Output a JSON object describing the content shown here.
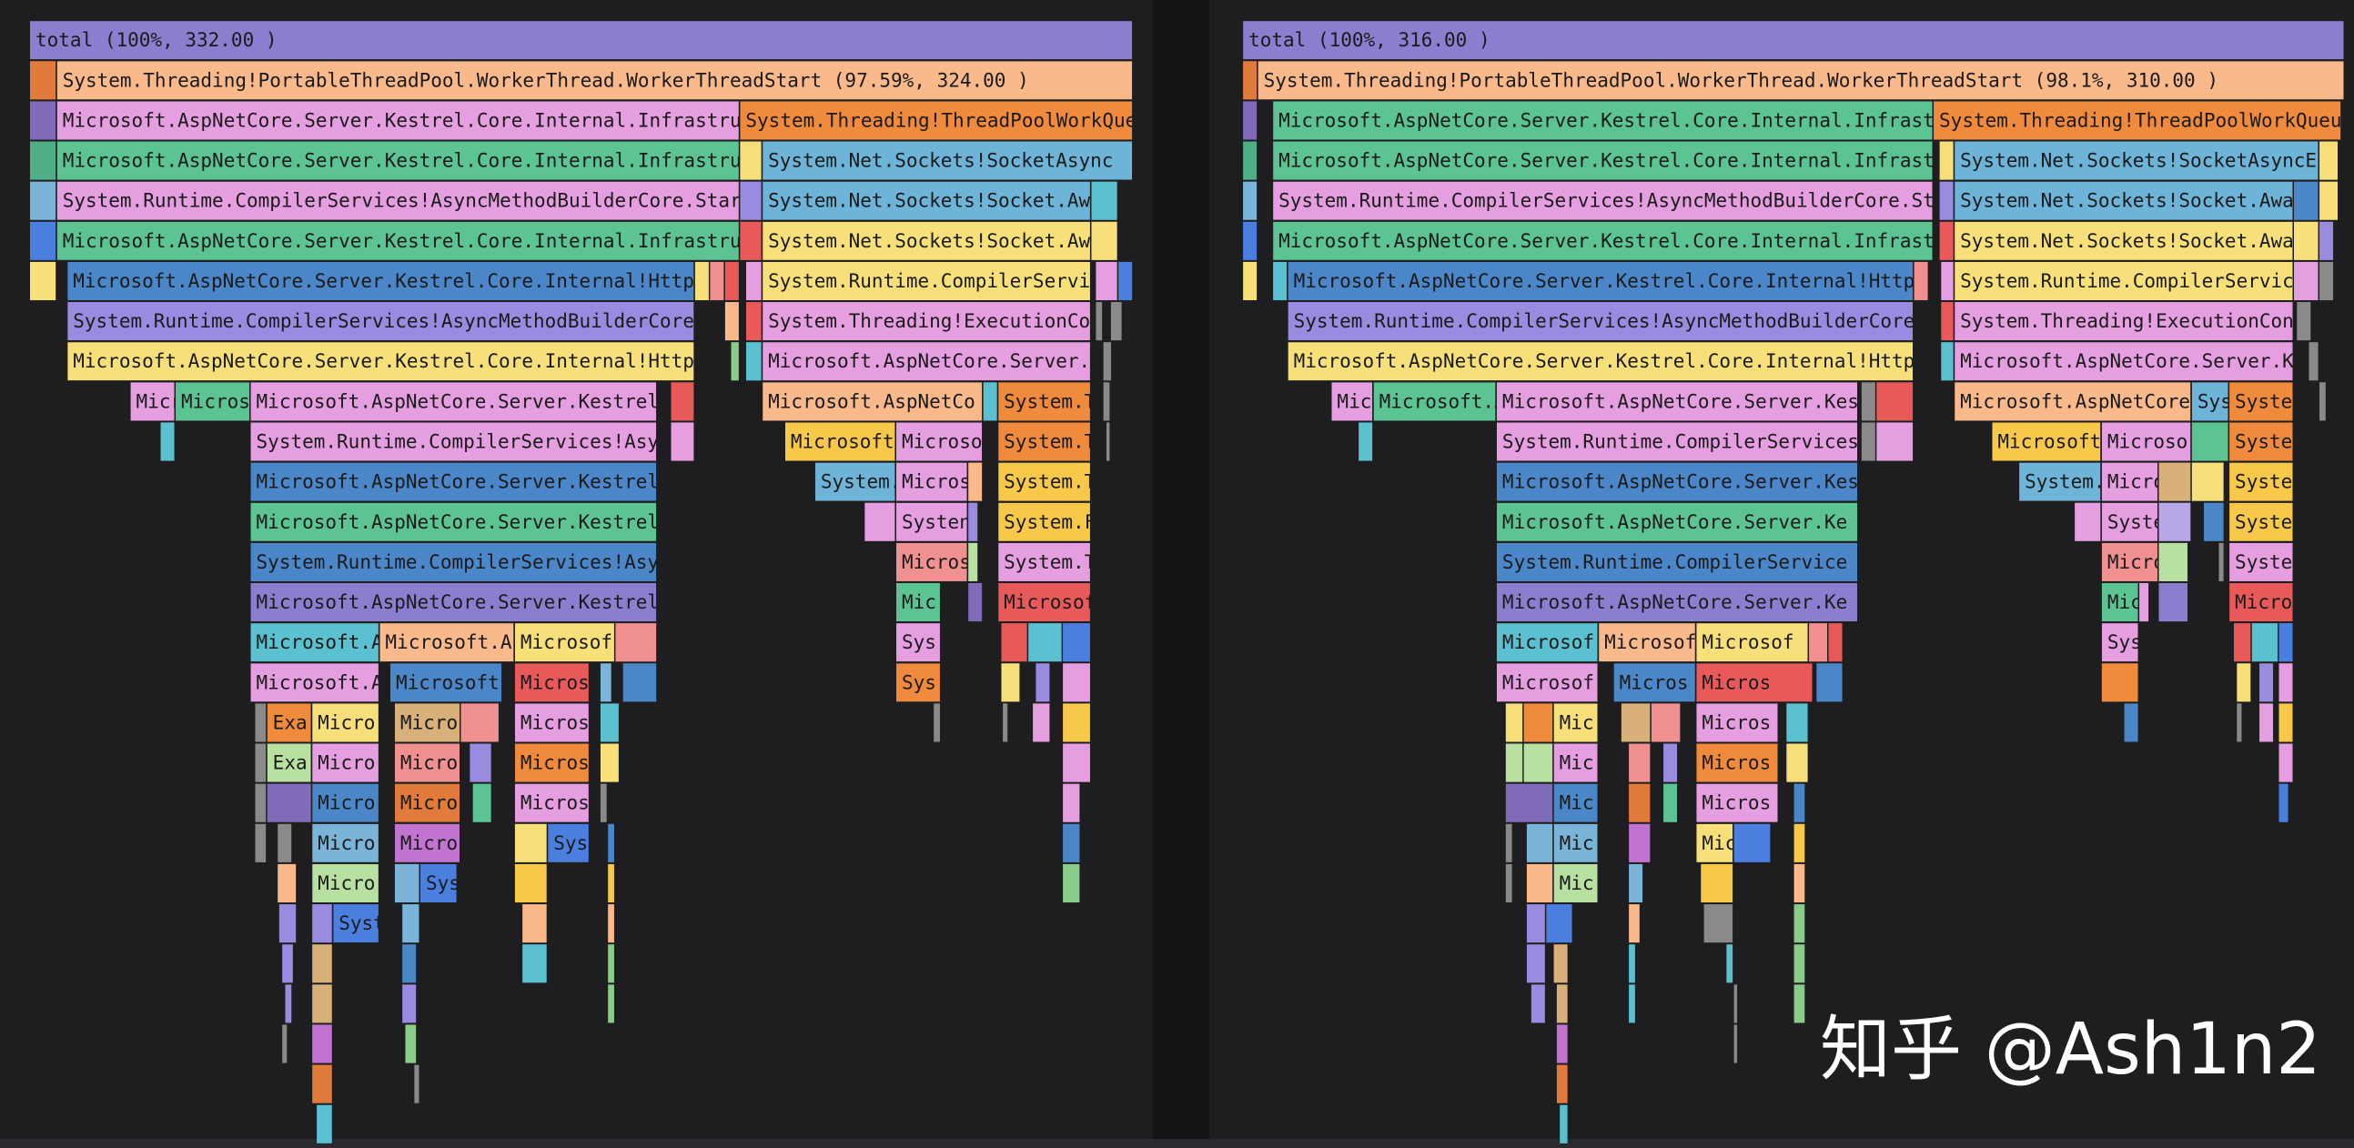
{
  "panels": [
    {
      "frames": [
        "total (100%, 332.00 )",
        "System.Threading!PortableThreadPool.WorkerThread.WorkerThreadStart (97.59%, 324.00 )",
        "Microsoft.AspNetCore.Server.Kestrel.Core.Internal.Infrastru",
        "System.Threading!ThreadPoolWorkQue",
        "Microsoft.AspNetCore.Server.Kestrel.Core.Internal.Infrastru",
        "System.Net.Sockets!SocketAsync",
        "System.Runtime.CompilerServices!AsyncMethodBuilderCore.Star",
        "System.Net.Sockets!Socket.Aw",
        "Microsoft.AspNetCore.Server.Kestrel.Core.Internal.Infrastru",
        "System.Net.Sockets!Socket.Aw",
        "Microsoft.AspNetCore.Server.Kestrel.Core.Internal!Http",
        "System.Runtime.CompilerServi",
        "System.Runtime.CompilerServices!AsyncMethodBuilderCore",
        "System.Threading!ExecutionCo",
        "Microsoft.AspNetCore.Server.Kestrel.Core.Internal!Http",
        "Microsoft.AspNetCore.Server.",
        "Micr",
        "Micros",
        "Microsoft.AspNetCore.Server.Kestrel",
        "Microsoft.AspNetCo",
        "System.T",
        "System.Runtime.CompilerServices!Asy",
        "Microsoft",
        "Microso",
        "System.T",
        "Microsoft.AspNetCore.Server.Kestrel",
        "System.",
        "Micros",
        "System.T",
        "Microsoft.AspNetCore.Server.Kestrel",
        "Systen",
        "System.F",
        "System.Runtime.CompilerServices!Asy",
        "Micros",
        "System.T",
        "Microsoft.AspNetCore.Server.Kestrel",
        "Mic",
        "Microsof",
        "Microsoft.A",
        "Microsoft.A",
        "Microsof",
        "Sys",
        "Microsoft.A",
        "Microsoft",
        "Micros",
        "Sys",
        "Exa",
        "Micro",
        "Micro",
        "Micros",
        "Exa",
        "Micro",
        "Micro",
        "Micros",
        "Micro",
        "Micro",
        "Micros",
        "Micro",
        "Micro",
        "Sys",
        "Micro",
        "Sys",
        "Syst"
      ]
    },
    {
      "frames": [
        "total (100%, 316.00 )",
        "System.Threading!PortableThreadPool.WorkerThread.WorkerThreadStart (98.1%, 310.00 )",
        "Microsoft.AspNetCore.Server.Kestrel.Core.Internal.Infrast",
        "System.Threading!ThreadPoolWorkQueu",
        "Microsoft.AspNetCore.Server.Kestrel.Core.Internal.Infrast",
        "System.Net.Sockets!SocketAsyncE",
        "System.Runtime.CompilerServices!AsyncMethodBuilderCore.St",
        "System.Net.Sockets!Socket.Awa",
        "Microsoft.AspNetCore.Server.Kestrel.Core.Internal.Infrast",
        "System.Net.Sockets!Socket.Awa",
        "Microsoft.AspNetCore.Server.Kestrel.Core.Internal!Http",
        "System.Runtime.CompilerServic",
        "System.Runtime.CompilerServices!AsyncMethodBuilderCore",
        "System.Threading!ExecutionCon",
        "Microsoft.AspNetCore.Server.Kestrel.Core.Internal!Http",
        "Microsoft.AspNetCore.Server.K",
        "Mic",
        "Microsoft.A",
        "Microsoft.AspNetCore.Server.Kes",
        "Microsoft.AspNetCore",
        "Sys",
        "Syste",
        "System.Runtime.CompilerServices",
        "Microsoft",
        "Microso",
        "Syste",
        "Microsoft.AspNetCore.Server.Kes",
        "System.",
        "Micro",
        "Syste",
        "Microsoft.AspNetCore.Server.Ke",
        "Syste",
        "Syste",
        "System.Runtime.CompilerService",
        "Micro",
        "Syste",
        "Microsoft.AspNetCore.Server.Ke",
        "Mic",
        "Micro",
        "Microsof",
        "Microsof",
        "Microsof",
        "Sys",
        "Microsof",
        "Micros",
        "Micros",
        "Mic",
        "Micros",
        "Mic",
        "Micros",
        "Mic",
        "Micros",
        "Mic",
        "Mic",
        "Mic"
      ]
    }
  ],
  "watermark": "知乎 @Ash1n2"
}
